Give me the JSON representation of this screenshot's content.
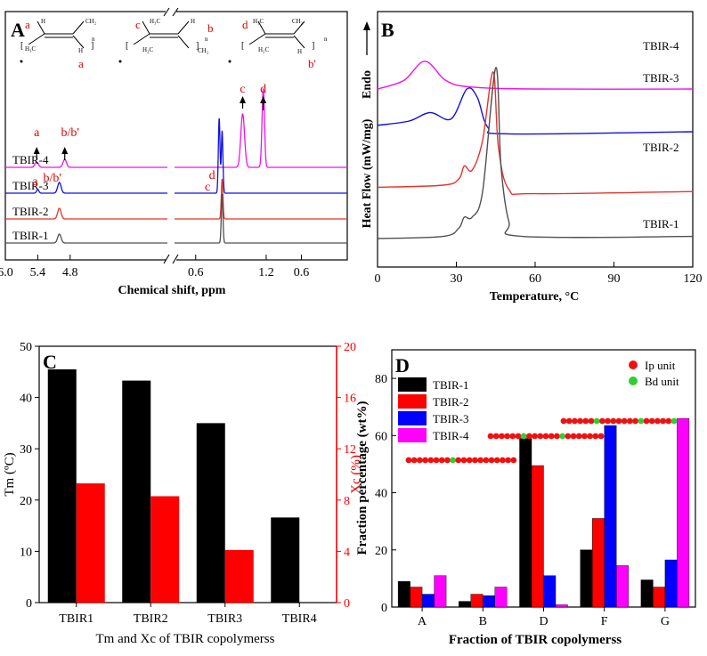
{
  "panels": {
    "A": {
      "letter": "A",
      "xlabel": "Chemical shift, ppm",
      "xticks": [
        "6.0",
        "5.4",
        "4.8",
        "0.6",
        "1.2",
        "0.6"
      ],
      "sample_labels": [
        "TBIR-4",
        "TBIR-3",
        "TBIR-2",
        "TBIR-1"
      ],
      "peak_labels": [
        "a",
        "b/b'",
        "a",
        "b/b'",
        "c",
        "d",
        "d",
        "c"
      ],
      "structure_labels": [
        "a",
        "a",
        "c",
        "b",
        "d",
        "b'"
      ],
      "structure_groups": [
        "H",
        "H",
        "CH₂",
        "H₃C",
        "CH₂",
        "H",
        "H₃C",
        "CH₂",
        "H",
        "CH₂",
        "H₂C",
        "H₂C",
        "n",
        "n",
        "n"
      ]
    },
    "B": {
      "letter": "B",
      "xlabel": "Temperature, °C",
      "ylabel": "Heat Flow (mW/mg)",
      "endo_label": "Endo",
      "xticks": [
        "0",
        "30",
        "60",
        "90",
        "120"
      ],
      "sample_labels": [
        "TBIR-4",
        "TBIR-3",
        "TBIR-2",
        "TBIR-1"
      ]
    },
    "C": {
      "letter": "C",
      "xlabel": "Tm and Xc of TBIR copolymerss",
      "ylabel_left": "Tm (ºC)",
      "ylabel_right": "Xc (%)",
      "yticks_left": [
        "0",
        "10",
        "20",
        "30",
        "40",
        "50"
      ],
      "yticks_right": [
        "0",
        "4",
        "8",
        "12",
        "16",
        "20"
      ]
    },
    "D": {
      "letter": "D",
      "xlabel": "Fraction of TBIR copolymerss",
      "ylabel": "Fraction percentage (wt%)",
      "yticks": [
        "0",
        "20",
        "40",
        "60",
        "80"
      ],
      "unit_legend": [
        "Ip unit",
        "Bd unit"
      ]
    }
  },
  "colors": {
    "TBIR-1": "#505050",
    "TBIR-2": "#e8332c",
    "TBIR-3": "#1010dd",
    "TBIR-4": "#ee11ee",
    "tm_bar": "#000000",
    "xc_bar": "#ff0000",
    "D_series": [
      "#000000",
      "#ff0000",
      "#0000ff",
      "#ff00ff"
    ],
    "ip_unit": "#ee1111",
    "bd_unit": "#33cc33",
    "label_red": "#dd0000"
  },
  "chart_data": [
    {
      "panel": "A",
      "type": "line",
      "title": "",
      "xlabel": "Chemical shift, ppm",
      "ylabel": "",
      "xlim": [
        6.0,
        0.0
      ],
      "x_axis_break": true,
      "series": [
        {
          "name": "TBIR-4",
          "peaks": [
            {
              "label": "a",
              "x": 5.42
            },
            {
              "label": "b/b'",
              "x": 4.9
            },
            {
              "label": "c",
              "x": 1.6
            },
            {
              "label": "d",
              "x": 1.25
            }
          ]
        },
        {
          "name": "TBIR-3",
          "peaks": [
            {
              "label": "a",
              "x": 5.4
            },
            {
              "label": "b/b'",
              "x": 5.0
            },
            {
              "label": "c",
              "x": 2.0
            },
            {
              "label": "d",
              "x": 1.95
            }
          ]
        },
        {
          "name": "TBIR-2",
          "peaks": [
            {
              "label": "b/b'",
              "x": 5.0
            },
            {
              "label": "c",
              "x": 1.95
            }
          ]
        },
        {
          "name": "TBIR-1",
          "peaks": [
            {
              "label": "b/b'",
              "x": 5.0
            },
            {
              "label": "c",
              "x": 1.95
            }
          ]
        }
      ]
    },
    {
      "panel": "B",
      "type": "line",
      "title": "",
      "xlabel": "Temperature, °C",
      "ylabel": "Heat Flow (mW/mg)",
      "xlim": [
        0,
        120
      ],
      "series": [
        {
          "name": "TBIR-4",
          "x": [
            0,
            10,
            18,
            26,
            35,
            60,
            120
          ],
          "y": [
            7.0,
            7.4,
            8.3,
            7.4,
            7.1,
            7.0,
            7.0
          ]
        },
        {
          "name": "TBIR-3",
          "x": [
            0,
            12,
            20,
            28,
            34,
            38,
            42,
            50,
            120
          ],
          "y": [
            5.3,
            5.5,
            5.9,
            5.6,
            7.0,
            6.6,
            5.2,
            4.9,
            5.0
          ]
        },
        {
          "name": "TBIR-2",
          "x": [
            0,
            25,
            31,
            33,
            36,
            40,
            44,
            46,
            50,
            60,
            120
          ],
          "y": [
            2.4,
            2.5,
            2.8,
            3.4,
            3.2,
            4.6,
            7.8,
            4.3,
            2.3,
            2.1,
            2.2
          ]
        },
        {
          "name": "TBIR-1",
          "x": [
            0,
            25,
            31,
            33,
            36,
            40,
            45,
            47,
            50,
            55,
            120
          ],
          "y": [
            0,
            0.1,
            0.5,
            1.0,
            1.0,
            2.2,
            8.0,
            3.4,
            0.8,
            0.1,
            0.1
          ]
        }
      ]
    },
    {
      "panel": "C",
      "type": "bar",
      "title": "",
      "xlabel": "Tm and Xc of TBIR copolymerss",
      "categories": [
        "TBIR1",
        "TBIR2",
        "TBIR3",
        "TBIR4"
      ],
      "ylim": [
        0,
        50
      ],
      "ylim_right": [
        0,
        20
      ],
      "series": [
        {
          "axis": "left",
          "values": [
            45.5,
            43.3,
            35.0,
            16.6
          ]
        },
        {
          "axis": "right",
          "values": [
            9.3,
            8.3,
            4.1,
            0
          ]
        }
      ]
    },
    {
      "panel": "D",
      "type": "bar",
      "title": "",
      "xlabel": "Fraction of TBIR copolymerss",
      "ylabel": "Fraction percentage (wt%)",
      "categories": [
        "A",
        "B",
        "D",
        "F",
        "G"
      ],
      "ylim": [
        0,
        90
      ],
      "legend": "top-left",
      "series": [
        {
          "name": "TBIR-1",
          "values": [
            9.0,
            2.0,
            59.0,
            20.0,
            9.5
          ]
        },
        {
          "name": "TBIR-2",
          "values": [
            7.0,
            4.5,
            49.5,
            31.0,
            7.0
          ]
        },
        {
          "name": "TBIR-3",
          "values": [
            4.5,
            4.0,
            11.0,
            63.5,
            16.5
          ]
        },
        {
          "name": "TBIR-4",
          "values": [
            11.0,
            7.0,
            0.8,
            14.5,
            66.0
          ]
        }
      ]
    }
  ]
}
